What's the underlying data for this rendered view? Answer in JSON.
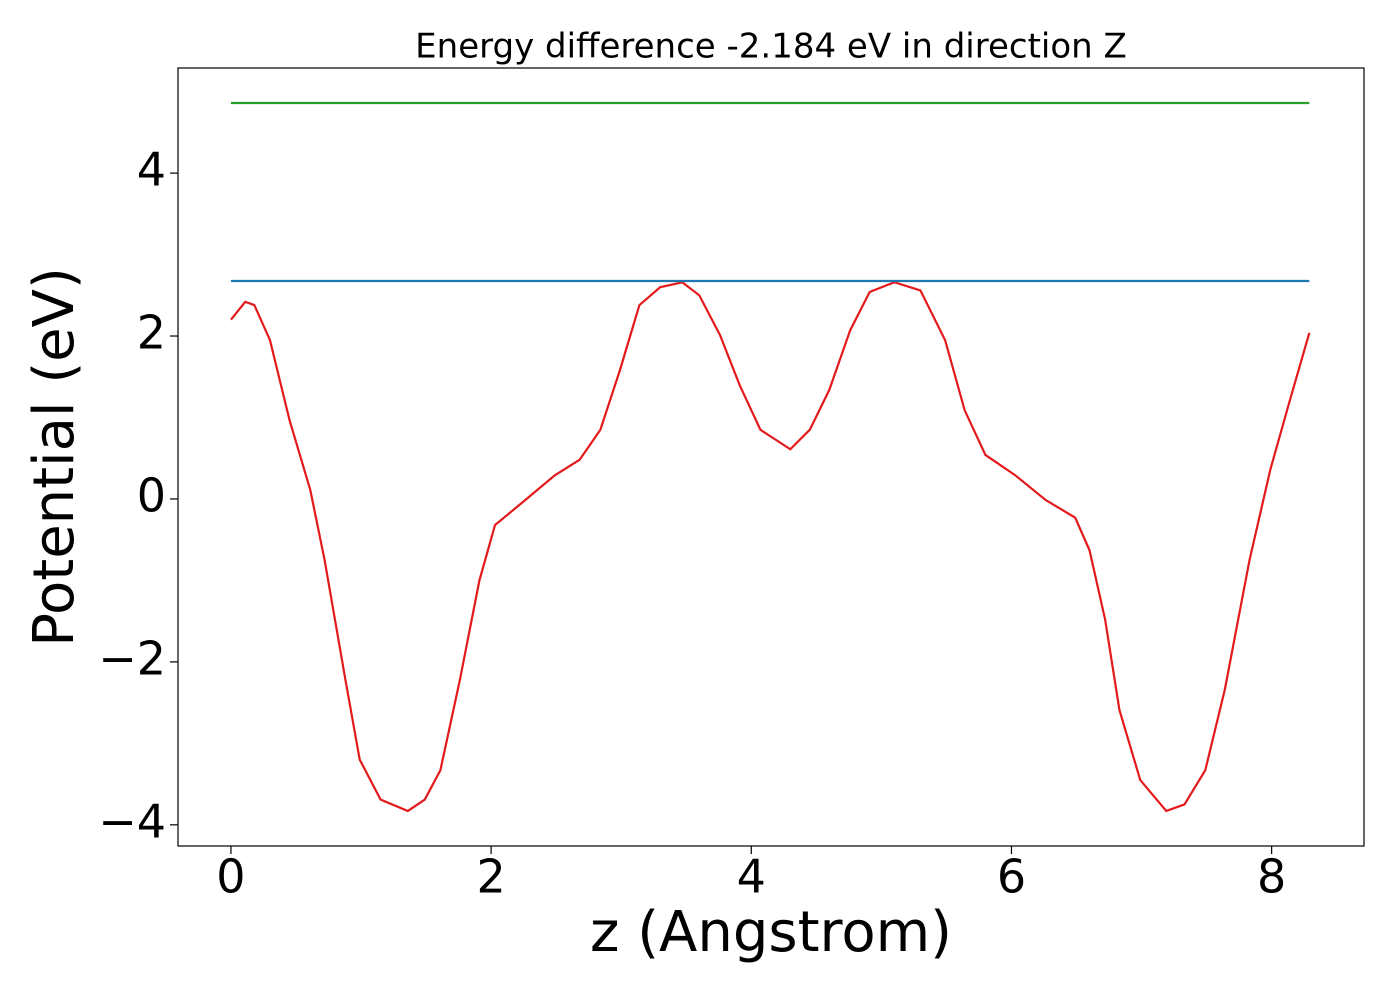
{
  "chart_data": {
    "type": "line",
    "title": "Energy difference -2.184 eV in direction Z",
    "xlabel": "z (Angstrom)",
    "ylabel": "Potential (eV)",
    "xlim": [
      -0.407,
      8.71
    ],
    "ylim": [
      -4.26,
      5.29
    ],
    "xticks": [
      0,
      2,
      4,
      6,
      8
    ],
    "yticks": [
      {
        "value": -4,
        "label": "−4"
      },
      {
        "value": -2,
        "label": "−2"
      },
      0,
      2,
      4
    ],
    "grid": false,
    "series": [
      {
        "color": "#e31a1c",
        "x": [
          0,
          0.11,
          0.18,
          0.3,
          0.45,
          0.61,
          0.72,
          0.88,
          0.99,
          1.15,
          1.36,
          1.49,
          1.61,
          1.76,
          1.91,
          2.03,
          2.22,
          2.49,
          2.68,
          2.84,
          2.99,
          3.14,
          3.3,
          3.47,
          3.6,
          3.76,
          3.91,
          4.07,
          4.3,
          4.45,
          4.6,
          4.76,
          4.91,
          5.1,
          5.3,
          5.49,
          5.64,
          5.8,
          6.03,
          6.26,
          6.49,
          6.6,
          6.72,
          6.83,
          6.99,
          7.19,
          7.33,
          7.49,
          7.64,
          7.83,
          7.99,
          8.14,
          8.29
        ],
        "values": [
          2.2,
          2.42,
          2.38,
          1.95,
          0.97,
          0.11,
          -0.75,
          -2.22,
          -3.2,
          -3.69,
          -3.83,
          -3.69,
          -3.33,
          -2.22,
          -1.0,
          -0.32,
          -0.07,
          0.29,
          0.48,
          0.85,
          1.58,
          2.38,
          2.6,
          2.66,
          2.5,
          2.01,
          1.4,
          0.85,
          0.61,
          0.85,
          1.34,
          2.07,
          2.54,
          2.66,
          2.56,
          1.95,
          1.09,
          0.54,
          0.29,
          -0.01,
          -0.23,
          -0.63,
          -1.48,
          -2.59,
          -3.45,
          -3.83,
          -3.75,
          -3.33,
          -2.34,
          -0.75,
          0.36,
          1.21,
          2.04
        ]
      },
      {
        "color": "#1f77b4",
        "x": [
          0,
          8.29
        ],
        "values": [
          2.675,
          2.675
        ]
      },
      {
        "color": "#2ca02c",
        "x": [
          0,
          8.29
        ],
        "values": [
          4.86,
          4.86
        ]
      }
    ]
  }
}
